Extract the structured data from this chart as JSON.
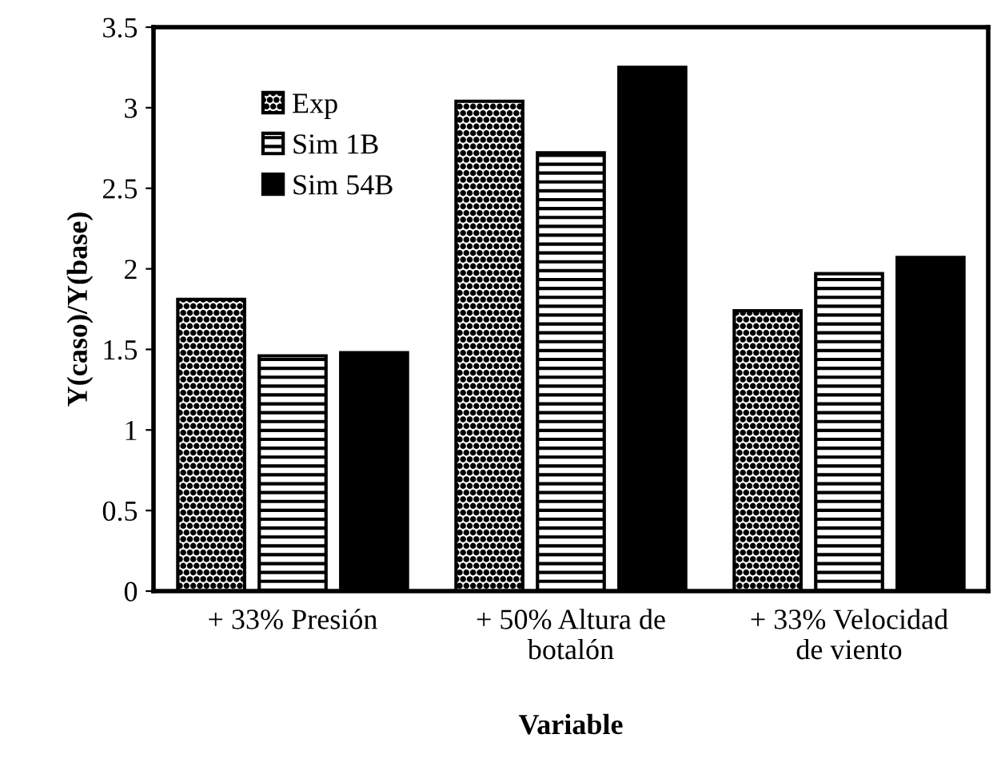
{
  "chart_data": {
    "type": "bar",
    "xlabel": "Variable",
    "ylabel": "Y(caso)/Y(base)",
    "categories": [
      "+ 33% Presión",
      "+ 50% Altura de\nbotalón",
      "+ 33% Velocidad\nde viento"
    ],
    "series": [
      {
        "name": "Exp",
        "color": "#000000",
        "values": [
          1.81,
          3.04,
          1.74
        ]
      },
      {
        "name": "Sim 1B",
        "color": "#000000",
        "values": [
          1.46,
          2.72,
          1.97
        ]
      },
      {
        "name": "Sim 54B",
        "color": "#000000",
        "values": [
          1.48,
          3.25,
          2.07
        ]
      }
    ],
    "ylim": [
      0,
      3.5
    ],
    "yticks": [
      0,
      0.5,
      1,
      1.5,
      2,
      2.5,
      3,
      3.5
    ],
    "grid": false,
    "legend": "top left"
  }
}
